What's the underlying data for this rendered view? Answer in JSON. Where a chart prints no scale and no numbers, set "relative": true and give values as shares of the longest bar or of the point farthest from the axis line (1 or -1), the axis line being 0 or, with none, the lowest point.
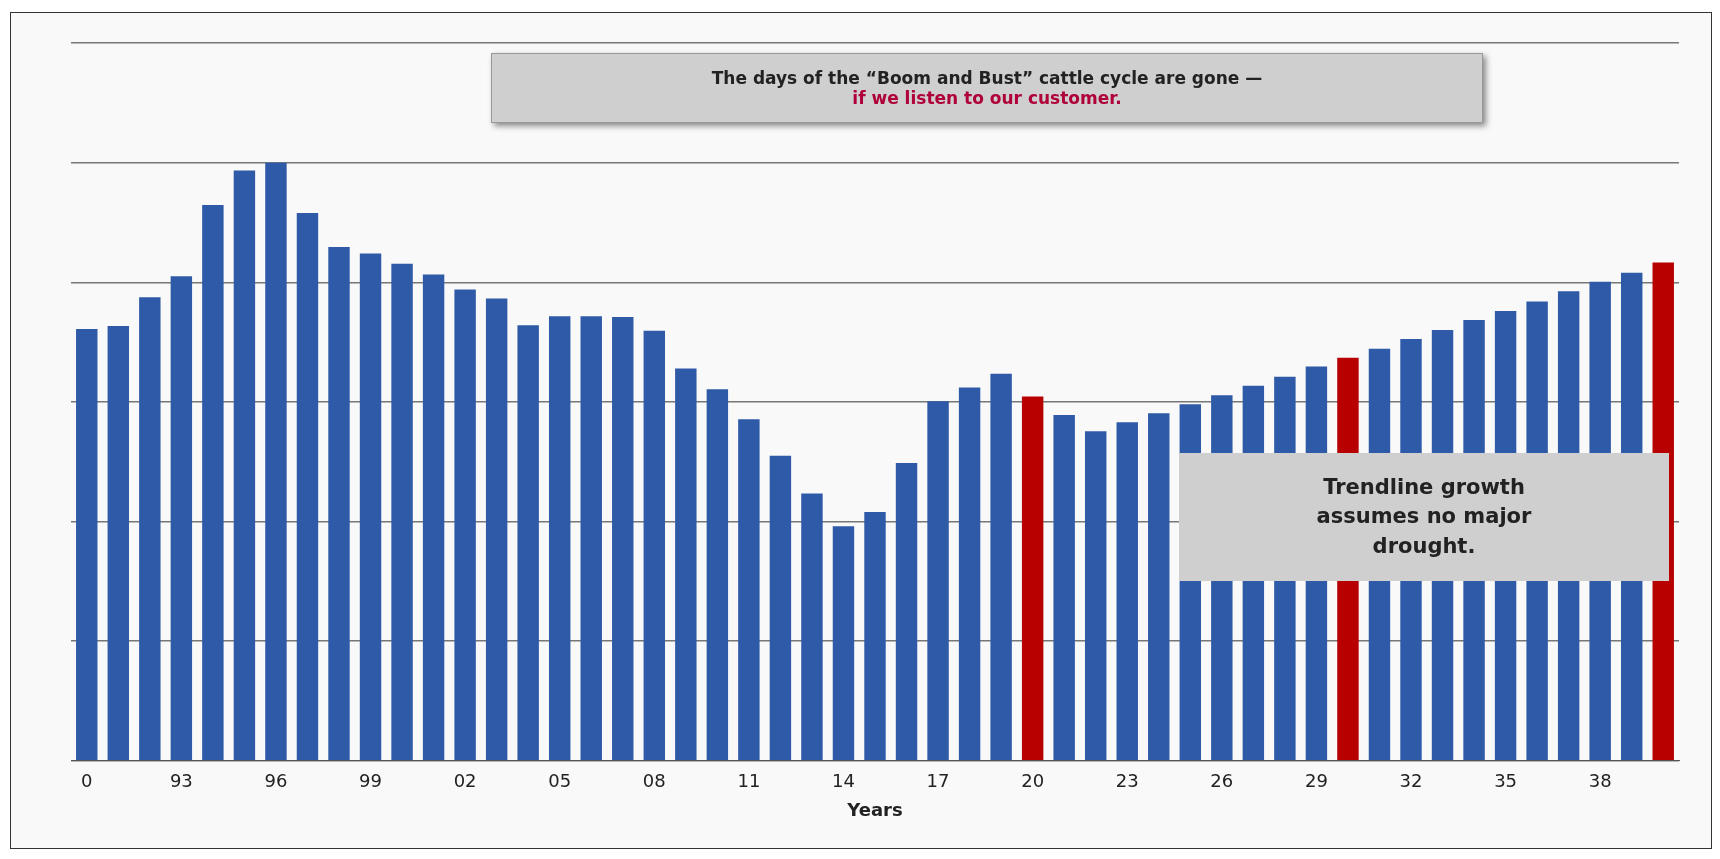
{
  "chart_data": {
    "type": "bar",
    "relative": true,
    "xlabel": "Years",
    "grid": "y",
    "legend": false,
    "categories": [
      "0",
      null,
      null,
      "93",
      null,
      null,
      "96",
      null,
      null,
      "99",
      null,
      null,
      "02",
      null,
      null,
      "05",
      null,
      null,
      "08",
      null,
      null,
      "11",
      null,
      null,
      "14",
      null,
      null,
      "17",
      null,
      null,
      "20",
      null,
      null,
      "23",
      null,
      null,
      "26",
      null,
      null,
      "29",
      null,
      null,
      "32",
      null,
      null,
      "35",
      null,
      null,
      "38",
      null,
      null
    ],
    "values": [
      0.722,
      0.727,
      0.775,
      0.81,
      0.929,
      0.987,
      1,
      0.916,
      0.859,
      0.848,
      0.831,
      0.813,
      0.788,
      0.773,
      0.728,
      0.743,
      0.743,
      0.742,
      0.719,
      0.656,
      0.621,
      0.571,
      0.51,
      0.447,
      0.392,
      0.416,
      0.498,
      0.601,
      0.624,
      0.647,
      0.609,
      0.578,
      0.551,
      0.566,
      0.581,
      0.596,
      0.611,
      0.627,
      0.642,
      0.659,
      0.674,
      0.689,
      0.705,
      0.72,
      0.737,
      0.752,
      0.768,
      0.785,
      0.801,
      0.816,
      0.833
    ],
    "colors": [
      "#2f5aa8",
      "#2f5aa8",
      "#2f5aa8",
      "#2f5aa8",
      "#2f5aa8",
      "#2f5aa8",
      "#2f5aa8",
      "#2f5aa8",
      "#2f5aa8",
      "#2f5aa8",
      "#2f5aa8",
      "#2f5aa8",
      "#2f5aa8",
      "#2f5aa8",
      "#2f5aa8",
      "#2f5aa8",
      "#2f5aa8",
      "#2f5aa8",
      "#2f5aa8",
      "#2f5aa8",
      "#2f5aa8",
      "#2f5aa8",
      "#2f5aa8",
      "#2f5aa8",
      "#2f5aa8",
      "#2f5aa8",
      "#2f5aa8",
      "#2f5aa8",
      "#2f5aa8",
      "#2f5aa8",
      "#b80000",
      "#2f5aa8",
      "#2f5aa8",
      "#2f5aa8",
      "#2f5aa8",
      "#2f5aa8",
      "#2f5aa8",
      "#2f5aa8",
      "#2f5aa8",
      "#2f5aa8",
      "#b80000",
      "#2f5aa8",
      "#2f5aa8",
      "#2f5aa8",
      "#2f5aa8",
      "#2f5aa8",
      "#2f5aa8",
      "#2f5aa8",
      "#2f5aa8",
      "#2f5aa8",
      "#b80000"
    ],
    "annotations": [
      "The days of the “Boom and Bust” cattle cycle are gone —",
      "if we listen to our customer.",
      "Trendline growth assumes no major drought."
    ]
  }
}
